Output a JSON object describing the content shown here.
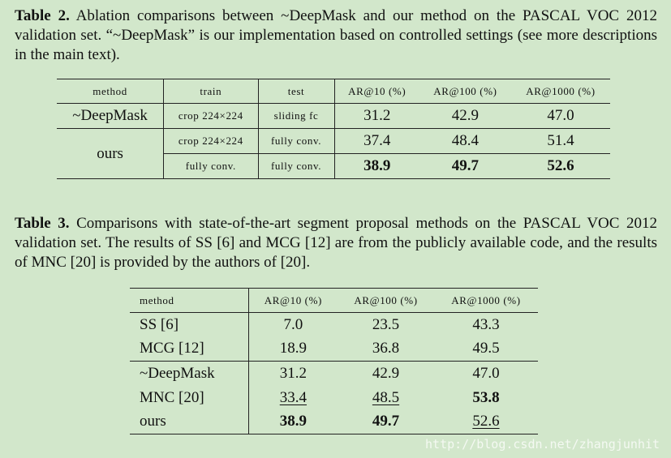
{
  "table2": {
    "caption_label": "Table 2.",
    "caption_text": " Ablation comparisons between ~DeepMask and our method on the PASCAL VOC 2012 validation set. “~DeepMask” is our implementation based on controlled settings (see more descriptions in the main text).",
    "headers": [
      "method",
      "train",
      "test",
      "AR@10 (%)",
      "AR@100 (%)",
      "AR@1000 (%)"
    ],
    "rows": [
      {
        "method": "~DeepMask",
        "train": "crop 224×224",
        "test": "sliding fc",
        "ar10": "31.2",
        "ar100": "42.9",
        "ar1000": "47.0"
      },
      {
        "method": "ours",
        "train": "crop 224×224",
        "test": "fully conv.",
        "ar10": "37.4",
        "ar100": "48.4",
        "ar1000": "51.4"
      },
      {
        "method": "",
        "train": "fully conv.",
        "test": "fully conv.",
        "ar10": "38.9",
        "ar100": "49.7",
        "ar1000": "52.6"
      }
    ]
  },
  "table3": {
    "caption_label": "Table 3.",
    "caption_text": " Comparisons with state-of-the-art segment proposal methods on the PASCAL VOC 2012 validation set. The results of SS [6] and MCG [12] are from the publicly available code, and the results of MNC [20] is provided by the authors of [20].",
    "headers": [
      "method",
      "AR@10 (%)",
      "AR@100 (%)",
      "AR@1000 (%)"
    ],
    "rows": [
      {
        "method": "SS [6]",
        "ar10": "7.0",
        "ar100": "23.5",
        "ar1000": "43.3"
      },
      {
        "method": "MCG [12]",
        "ar10": "18.9",
        "ar100": "36.8",
        "ar1000": "49.5"
      },
      {
        "method": "~DeepMask",
        "ar10": "31.2",
        "ar100": "42.9",
        "ar1000": "47.0"
      },
      {
        "method": "MNC [20]",
        "ar10": "33.4",
        "ar100": "48.5",
        "ar1000": "53.8"
      },
      {
        "method": "ours",
        "ar10": "38.9",
        "ar100": "49.7",
        "ar1000": "52.6"
      }
    ]
  },
  "watermark": "http://blog.csdn.net/zhangjunhit"
}
